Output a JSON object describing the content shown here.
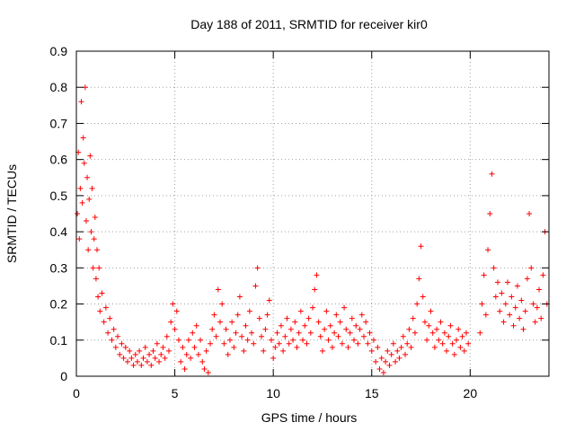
{
  "chart_data": {
    "type": "scatter",
    "title": "Day 188 of 2011, SRMTID for receiver kir0",
    "xlabel": "GPS time / hours",
    "ylabel": "SRMTID / TECUs",
    "xlim": [
      0,
      24
    ],
    "ylim": [
      0,
      0.9
    ],
    "x_ticks": [
      0,
      5,
      10,
      15,
      20
    ],
    "x_tick_labels": [
      "0",
      "5",
      "10",
      "15",
      "20"
    ],
    "y_ticks": [
      0,
      0.1,
      0.2,
      0.3,
      0.4,
      0.5,
      0.6,
      0.7,
      0.8,
      0.9
    ],
    "y_tick_labels": [
      "0",
      "0.1",
      "0.2",
      "0.3",
      "0.4",
      "0.5",
      "0.6",
      "0.7",
      "0.8",
      "0.9"
    ],
    "grid": true,
    "marker": "+",
    "series_color": "#ff0000",
    "series": [
      {
        "name": "SRMTID",
        "points": [
          [
            0.05,
            0.45
          ],
          [
            0.1,
            0.62
          ],
          [
            0.15,
            0.38
          ],
          [
            0.2,
            0.52
          ],
          [
            0.25,
            0.76
          ],
          [
            0.3,
            0.48
          ],
          [
            0.35,
            0.66
          ],
          [
            0.4,
            0.59
          ],
          [
            0.45,
            0.8
          ],
          [
            0.5,
            0.43
          ],
          [
            0.55,
            0.55
          ],
          [
            0.6,
            0.35
          ],
          [
            0.65,
            0.49
          ],
          [
            0.7,
            0.61
          ],
          [
            0.75,
            0.4
          ],
          [
            0.8,
            0.52
          ],
          [
            0.85,
            0.3
          ],
          [
            0.9,
            0.38
          ],
          [
            0.95,
            0.44
          ],
          [
            1.0,
            0.27
          ],
          [
            1.05,
            0.35
          ],
          [
            1.1,
            0.22
          ],
          [
            1.15,
            0.3
          ],
          [
            1.2,
            0.18
          ],
          [
            1.3,
            0.23
          ],
          [
            1.4,
            0.15
          ],
          [
            1.5,
            0.19
          ],
          [
            1.6,
            0.12
          ],
          [
            1.7,
            0.16
          ],
          [
            1.8,
            0.1
          ],
          [
            1.9,
            0.13
          ],
          [
            2.0,
            0.08
          ],
          [
            2.1,
            0.11
          ],
          [
            2.2,
            0.06
          ],
          [
            2.3,
            0.09
          ],
          [
            2.4,
            0.05
          ],
          [
            2.5,
            0.08
          ],
          [
            2.6,
            0.04
          ],
          [
            2.7,
            0.07
          ],
          [
            2.8,
            0.05
          ],
          [
            2.9,
            0.03
          ],
          [
            3.0,
            0.06
          ],
          [
            3.1,
            0.04
          ],
          [
            3.2,
            0.07
          ],
          [
            3.3,
            0.03
          ],
          [
            3.4,
            0.05
          ],
          [
            3.5,
            0.08
          ],
          [
            3.6,
            0.04
          ],
          [
            3.7,
            0.06
          ],
          [
            3.8,
            0.03
          ],
          [
            3.9,
            0.07
          ],
          [
            4.0,
            0.05
          ],
          [
            4.1,
            0.09
          ],
          [
            4.2,
            0.04
          ],
          [
            4.3,
            0.06
          ],
          [
            4.4,
            0.08
          ],
          [
            4.5,
            0.05
          ],
          [
            4.6,
            0.11
          ],
          [
            4.7,
            0.07
          ],
          [
            4.8,
            0.15
          ],
          [
            4.9,
            0.2
          ],
          [
            5.0,
            0.13
          ],
          [
            5.1,
            0.18
          ],
          [
            5.2,
            0.1
          ],
          [
            5.3,
            0.04
          ],
          [
            5.4,
            0.08
          ],
          [
            5.5,
            0.02
          ],
          [
            5.6,
            0.06
          ],
          [
            5.7,
            0.1
          ],
          [
            5.8,
            0.05
          ],
          [
            5.9,
            0.12
          ],
          [
            6.0,
            0.08
          ],
          [
            6.1,
            0.14
          ],
          [
            6.2,
            0.06
          ],
          [
            6.3,
            0.1
          ],
          [
            6.4,
            0.04
          ],
          [
            6.5,
            0.02
          ],
          [
            6.6,
            0.07
          ],
          [
            6.7,
            0.01
          ],
          [
            6.8,
            0.09
          ],
          [
            6.9,
            0.13
          ],
          [
            7.0,
            0.17
          ],
          [
            7.1,
            0.11
          ],
          [
            7.2,
            0.24
          ],
          [
            7.3,
            0.15
          ],
          [
            7.4,
            0.2
          ],
          [
            7.5,
            0.09
          ],
          [
            7.6,
            0.13
          ],
          [
            7.7,
            0.06
          ],
          [
            7.8,
            0.1
          ],
          [
            7.9,
            0.15
          ],
          [
            8.0,
            0.08
          ],
          [
            8.1,
            0.12
          ],
          [
            8.2,
            0.17
          ],
          [
            8.3,
            0.22
          ],
          [
            8.4,
            0.11
          ],
          [
            8.5,
            0.07
          ],
          [
            8.6,
            0.14
          ],
          [
            8.7,
            0.1
          ],
          [
            8.8,
            0.18
          ],
          [
            8.9,
            0.12
          ],
          [
            9.0,
            0.09
          ],
          [
            9.1,
            0.25
          ],
          [
            9.2,
            0.3
          ],
          [
            9.3,
            0.16
          ],
          [
            9.4,
            0.11
          ],
          [
            9.5,
            0.07
          ],
          [
            9.6,
            0.13
          ],
          [
            9.7,
            0.17
          ],
          [
            9.8,
            0.21
          ],
          [
            9.9,
            0.1
          ],
          [
            10.0,
            0.05
          ],
          [
            10.1,
            0.08
          ],
          [
            10.2,
            0.12
          ],
          [
            10.3,
            0.09
          ],
          [
            10.4,
            0.14
          ],
          [
            10.5,
            0.07
          ],
          [
            10.6,
            0.11
          ],
          [
            10.7,
            0.16
          ],
          [
            10.8,
            0.09
          ],
          [
            10.9,
            0.13
          ],
          [
            11.0,
            0.1
          ],
          [
            11.1,
            0.15
          ],
          [
            11.2,
            0.08
          ],
          [
            11.3,
            0.12
          ],
          [
            11.4,
            0.18
          ],
          [
            11.5,
            0.1
          ],
          [
            11.6,
            0.14
          ],
          [
            11.7,
            0.09
          ],
          [
            11.8,
            0.16
          ],
          [
            11.9,
            0.12
          ],
          [
            12.0,
            0.19
          ],
          [
            12.1,
            0.24
          ],
          [
            12.2,
            0.28
          ],
          [
            12.3,
            0.15
          ],
          [
            12.4,
            0.11
          ],
          [
            12.5,
            0.07
          ],
          [
            12.6,
            0.13
          ],
          [
            12.7,
            0.18
          ],
          [
            12.8,
            0.1
          ],
          [
            12.9,
            0.14
          ],
          [
            13.0,
            0.08
          ],
          [
            13.1,
            0.12
          ],
          [
            13.2,
            0.17
          ],
          [
            13.3,
            0.11
          ],
          [
            13.4,
            0.15
          ],
          [
            13.5,
            0.09
          ],
          [
            13.6,
            0.19
          ],
          [
            13.7,
            0.13
          ],
          [
            13.8,
            0.08
          ],
          [
            13.9,
            0.12
          ],
          [
            14.0,
            0.16
          ],
          [
            14.1,
            0.1
          ],
          [
            14.2,
            0.14
          ],
          [
            14.3,
            0.09
          ],
          [
            14.4,
            0.13
          ],
          [
            14.5,
            0.17
          ],
          [
            14.6,
            0.11
          ],
          [
            14.7,
            0.15
          ],
          [
            14.8,
            0.09
          ],
          [
            14.9,
            0.12
          ],
          [
            15.0,
            0.07
          ],
          [
            15.1,
            0.1
          ],
          [
            15.2,
            0.04
          ],
          [
            15.3,
            0.08
          ],
          [
            15.4,
            0.02
          ],
          [
            15.5,
            0.05
          ],
          [
            15.6,
            0.01
          ],
          [
            15.7,
            0.04
          ],
          [
            15.8,
            0.07
          ],
          [
            15.9,
            0.03
          ],
          [
            16.0,
            0.06
          ],
          [
            16.1,
            0.09
          ],
          [
            16.2,
            0.04
          ],
          [
            16.3,
            0.07
          ],
          [
            16.4,
            0.05
          ],
          [
            16.5,
            0.08
          ],
          [
            16.6,
            0.11
          ],
          [
            16.7,
            0.06
          ],
          [
            16.8,
            0.09
          ],
          [
            16.9,
            0.13
          ],
          [
            17.0,
            0.08
          ],
          [
            17.1,
            0.16
          ],
          [
            17.2,
            0.12
          ],
          [
            17.3,
            0.2
          ],
          [
            17.4,
            0.27
          ],
          [
            17.5,
            0.36
          ],
          [
            17.6,
            0.22
          ],
          [
            17.7,
            0.15
          ],
          [
            17.8,
            0.1
          ],
          [
            17.9,
            0.14
          ],
          [
            18.0,
            0.18
          ],
          [
            18.1,
            0.12
          ],
          [
            18.2,
            0.08
          ],
          [
            18.3,
            0.13
          ],
          [
            18.4,
            0.1
          ],
          [
            18.5,
            0.15
          ],
          [
            18.6,
            0.09
          ],
          [
            18.7,
            0.12
          ],
          [
            18.8,
            0.07
          ],
          [
            18.9,
            0.11
          ],
          [
            19.0,
            0.14
          ],
          [
            19.1,
            0.09
          ],
          [
            19.2,
            0.06
          ],
          [
            19.3,
            0.1
          ],
          [
            19.4,
            0.13
          ],
          [
            19.5,
            0.08
          ],
          [
            19.6,
            0.11
          ],
          [
            19.7,
            0.07
          ],
          [
            19.8,
            0.12
          ],
          [
            19.9,
            0.09
          ],
          [
            20.5,
            0.12
          ],
          [
            20.6,
            0.2
          ],
          [
            20.7,
            0.28
          ],
          [
            20.8,
            0.17
          ],
          [
            20.9,
            0.35
          ],
          [
            21.0,
            0.45
          ],
          [
            21.1,
            0.56
          ],
          [
            21.2,
            0.3
          ],
          [
            21.3,
            0.22
          ],
          [
            21.4,
            0.26
          ],
          [
            21.5,
            0.18
          ],
          [
            21.6,
            0.23
          ],
          [
            21.7,
            0.15
          ],
          [
            21.8,
            0.2
          ],
          [
            21.9,
            0.26
          ],
          [
            22.0,
            0.17
          ],
          [
            22.1,
            0.22
          ],
          [
            22.2,
            0.14
          ],
          [
            22.3,
            0.19
          ],
          [
            22.4,
            0.25
          ],
          [
            22.5,
            0.16
          ],
          [
            22.6,
            0.21
          ],
          [
            22.7,
            0.13
          ],
          [
            22.8,
            0.18
          ],
          [
            22.9,
            0.27
          ],
          [
            23.0,
            0.45
          ],
          [
            23.1,
            0.3
          ],
          [
            23.2,
            0.2
          ],
          [
            23.3,
            0.15
          ],
          [
            23.4,
            0.19
          ],
          [
            23.5,
            0.24
          ],
          [
            23.6,
            0.16
          ],
          [
            23.7,
            0.28
          ],
          [
            23.8,
            0.4
          ],
          [
            23.9,
            0.2
          ]
        ]
      }
    ]
  }
}
